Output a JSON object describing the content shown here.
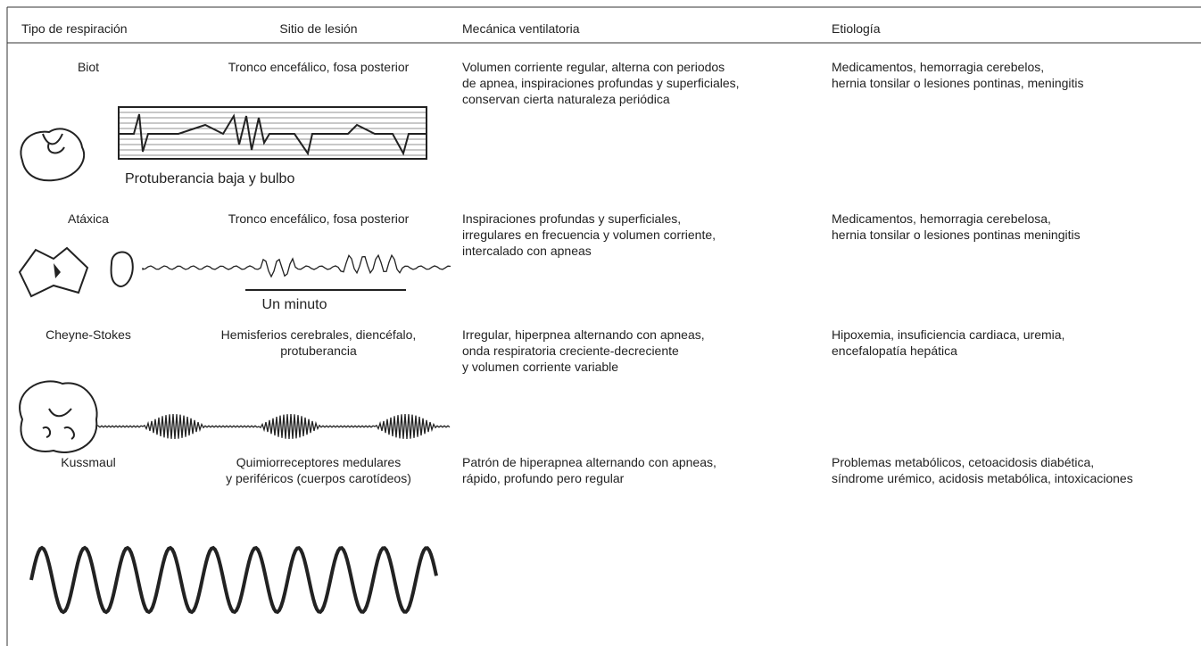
{
  "table": {
    "headers": [
      "Tipo de respiración",
      "Sitio de lesión",
      "Mecánica ventilatoria",
      "Etiología"
    ],
    "rows": [
      {
        "type": [
          "Biot"
        ],
        "site": [
          "Tronco encefálico, fosa posterior"
        ],
        "mechanics": [
          "Volumen corriente regular, alterna con periodos",
          "de apnea, inspiraciones profundas y superficiales,",
          "conservan cierta naturaleza periódica"
        ],
        "etiology": [
          "Medicamentos, hemorragia cerebelos,",
          "hernia tonsilar o lesiones pontinas, meningitis"
        ],
        "caption": "Protuberancia baja y bulbo"
      },
      {
        "type": [
          "Atáxica"
        ],
        "site": [
          "Tronco encefálico, fosa posterior"
        ],
        "mechanics": [
          "Inspiraciones profundas y superficiales,",
          "irregulares en frecuencia y volumen corriente,",
          "intercalado con apneas"
        ],
        "etiology": [
          "Medicamentos, hemorragia cerebelosa,",
          "hernia tonsilar o lesiones pontinas meningitis"
        ],
        "caption": "Un minuto"
      },
      {
        "type": [
          "Cheyne-Stokes"
        ],
        "site": [
          "Hemisferios cerebrales, diencéfalo,",
          "protuberancia"
        ],
        "mechanics": [
          "Irregular, hiperpnea alternando con apneas,",
          "onda respiratoria creciente-decreciente",
          "y volumen corriente variable"
        ],
        "etiology": [
          "Hipoxemia, insuficiencia cardiaca, uremia,",
          "encefalopatía hepática"
        ]
      },
      {
        "type": [
          "Kussmaul"
        ],
        "site": [
          "Quimiorreceptores medulares",
          "y periféricos (cuerpos carotídeos)"
        ],
        "mechanics": [
          "Patrón de hiperapnea alternando con apneas,",
          "rápido, profundo pero regular"
        ],
        "etiology": [
          "Problemas metabólicos, cetoacidosis diabética,",
          "síndrome urémico, acidosis metabólica, intoxicaciones"
        ]
      }
    ]
  }
}
